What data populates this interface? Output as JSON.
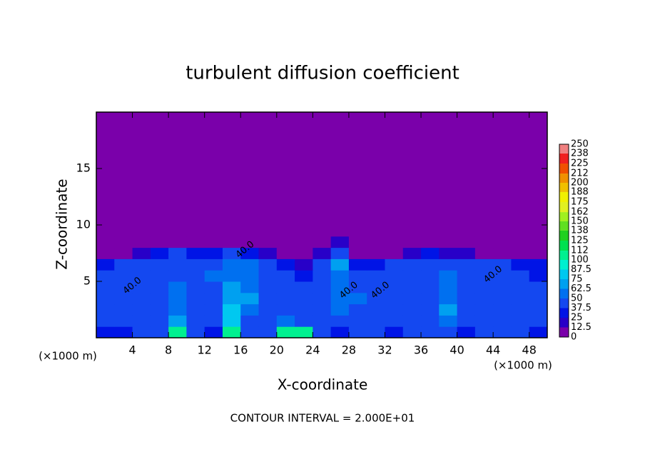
{
  "chart_data": {
    "type": "contour",
    "title": "turbulent diffusion coefficient",
    "xlabel": "X-coordinate",
    "ylabel": "Z-coordinate",
    "x_unit": "(×1000 m)",
    "y_unit": "(×1000 m)",
    "footnote": "CONTOUR INTERVAL = 2.000E+01",
    "xlim": [
      0,
      50
    ],
    "ylim": [
      0,
      20
    ],
    "xticks": [
      4,
      8,
      12,
      16,
      20,
      24,
      28,
      32,
      36,
      40,
      44,
      48
    ],
    "yticks": [
      5,
      10,
      15
    ],
    "colorbar": {
      "levels": [
        0,
        12.5,
        25,
        37.5,
        50,
        62.5,
        75,
        87.5,
        100,
        112,
        125,
        138,
        150,
        162,
        175,
        188,
        200,
        212,
        225,
        238,
        250
      ],
      "colors": [
        "#7a00aa",
        "#2800c8",
        "#0014e6",
        "#1448f0",
        "#0070f0",
        "#00a0f0",
        "#00c8f0",
        "#00f0d0",
        "#00f090",
        "#00e050",
        "#20d020",
        "#60e020",
        "#a0f020",
        "#e0f020",
        "#f0f000",
        "#f0c000",
        "#f09000",
        "#f05000",
        "#f02020",
        "#f08080"
      ]
    },
    "contour_labels": [
      {
        "text": "40.0",
        "x": 4,
        "y": 4.6
      },
      {
        "text": "40.0",
        "x": 16.5,
        "y": 7.8
      },
      {
        "text": "40.0",
        "x": 28,
        "y": 4.2
      },
      {
        "text": "40.0",
        "x": 31.5,
        "y": 4.2
      },
      {
        "text": "40.0",
        "x": 44,
        "y": 5.6
      }
    ],
    "field": {
      "x": [
        1,
        3,
        5,
        7,
        9,
        11,
        13,
        15,
        17,
        19,
        21,
        23,
        25,
        27,
        29,
        31,
        33,
        35,
        37,
        39,
        41,
        43,
        45,
        47,
        49
      ],
      "y": [
        0.5,
        1.5,
        2.5,
        3.5,
        4.5,
        5.5,
        6.5,
        7.5,
        8.5,
        9.5
      ],
      "values": [
        [
          30,
          35,
          40,
          45,
          110,
          40,
          35,
          105,
          40,
          45,
          100,
          110,
          40,
          35,
          45,
          40,
          35,
          40,
          45,
          40,
          35,
          40,
          45,
          40,
          35
        ],
        [
          40,
          42,
          45,
          40,
          70,
          45,
          42,
          80,
          45,
          40,
          55,
          45,
          40,
          42,
          45,
          40,
          42,
          45,
          40,
          60,
          42,
          40,
          45,
          40,
          42
        ],
        [
          42,
          45,
          40,
          45,
          60,
          40,
          45,
          75,
          60,
          40,
          45,
          40,
          42,
          55,
          40,
          45,
          42,
          45,
          40,
          65,
          45,
          42,
          40,
          45,
          40
        ],
        [
          45,
          40,
          45,
          40,
          55,
          45,
          40,
          70,
          65,
          45,
          40,
          40,
          45,
          60,
          50,
          45,
          40,
          42,
          45,
          60,
          40,
          45,
          42,
          40,
          45
        ],
        [
          42,
          45,
          42,
          45,
          50,
          45,
          45,
          65,
          60,
          45,
          42,
          40,
          40,
          55,
          45,
          45,
          42,
          40,
          45,
          55,
          42,
          45,
          45,
          42,
          40
        ],
        [
          40,
          42,
          45,
          42,
          45,
          42,
          50,
          60,
          55,
          42,
          40,
          35,
          45,
          60,
          40,
          42,
          45,
          42,
          40,
          50,
          45,
          42,
          45,
          40,
          35
        ],
        [
          30,
          40,
          42,
          40,
          42,
          40,
          45,
          55,
          50,
          40,
          30,
          20,
          45,
          65,
          35,
          30,
          40,
          42,
          45,
          42,
          40,
          42,
          40,
          30,
          25
        ],
        [
          5,
          10,
          20,
          35,
          40,
          30,
          35,
          40,
          30,
          15,
          5,
          5,
          20,
          40,
          10,
          5,
          5,
          15,
          30,
          20,
          15,
          10,
          5,
          5,
          5
        ],
        [
          5,
          5,
          5,
          5,
          5,
          5,
          5,
          5,
          5,
          5,
          5,
          5,
          5,
          15,
          5,
          5,
          5,
          5,
          5,
          5,
          5,
          5,
          5,
          5,
          5
        ],
        [
          5,
          5,
          5,
          5,
          5,
          5,
          5,
          5,
          5,
          5,
          5,
          5,
          5,
          5,
          5,
          5,
          5,
          5,
          5,
          5,
          5,
          5,
          5,
          5,
          5
        ]
      ]
    }
  }
}
